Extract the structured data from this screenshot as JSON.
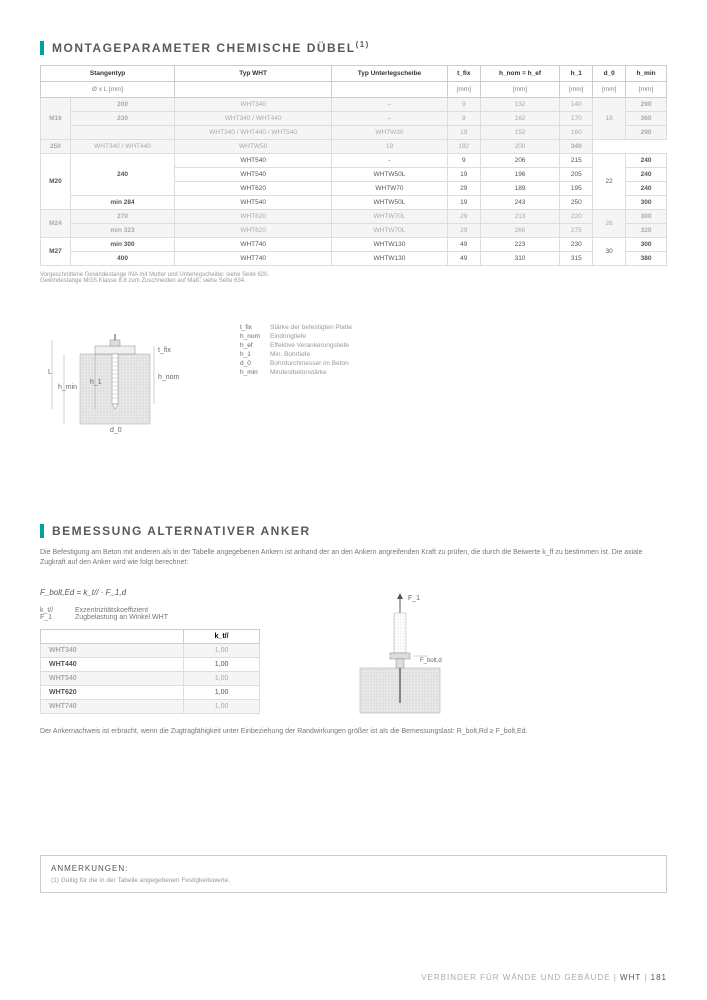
{
  "section1": {
    "title": "MONTAGEPARAMETER CHEMISCHE DÜBEL",
    "title_sup": "(1)",
    "headers_row1": [
      "Stangentyp",
      "",
      "Typ WHT",
      "Typ Unterlegscheibe",
      "t_fix",
      "h_nom = h_ef",
      "h_1",
      "d_0",
      "h_min"
    ],
    "headers_row2": [
      "Ø x L [mm]",
      "",
      "",
      "",
      "[mm]",
      "[mm]",
      "[mm]",
      "[mm]",
      "[mm]"
    ],
    "rows": [
      {
        "class": "dim",
        "rod": "M16",
        "rspan": 3,
        "len": "200",
        "typ": "WHT340",
        "washer": "–",
        "tfix": "9",
        "hnom": "132",
        "h1": "140",
        "d0": "18",
        "d0rspan": 3,
        "hmin": "290"
      },
      {
        "class": "dim",
        "len": "230",
        "typ": "WHT340 / WHT440",
        "washer": "–",
        "tfix": "9",
        "hnom": "162",
        "h1": "170",
        "hmin": "360"
      },
      {
        "class": "dim",
        "len": "",
        "typ": "WHT340 / WHT440 / WHT540",
        "washer": "WHTW30",
        "tfix": "19",
        "hnom": "152",
        "h1": "160",
        "hmin": "290"
      },
      {
        "class": "dim",
        "len": "250",
        "typ": "WHT340 / WHT440",
        "washer": "WHTW50",
        "tfix": "19",
        "hnom": "192",
        "h1": "200",
        "hmin": "340"
      },
      {
        "class": "highlight",
        "rod": "M20",
        "rspan": 4,
        "len": "240",
        "lenrspan": 3,
        "typ": "WHT540",
        "washer": "-",
        "tfix": "9",
        "hnom": "206",
        "h1": "215",
        "d0": "22",
        "d0rspan": 4,
        "hmin": "240"
      },
      {
        "class": "highlight",
        "typ": "WHT540",
        "washer": "WHTW50L",
        "tfix": "19",
        "hnom": "196",
        "h1": "205",
        "hmin": "240"
      },
      {
        "class": "highlight",
        "typ": "WHT620",
        "washer": "WHTW70",
        "tfix": "29",
        "hnom": "189",
        "h1": "195",
        "hmin": "240"
      },
      {
        "class": "highlight",
        "len": "min 284",
        "typ": "WHT540",
        "washer": "WHTW50L",
        "tfix": "19",
        "hnom": "243",
        "h1": "250",
        "hmin": "300"
      },
      {
        "class": "dim",
        "rod": "M24",
        "rspan": 2,
        "len": "270",
        "typ": "WHT620",
        "washer": "WHTW70L",
        "tfix": "29",
        "hnom": "213",
        "h1": "220",
        "d0": "26",
        "d0rspan": 2,
        "hmin": "300"
      },
      {
        "class": "dim",
        "len": "min 323",
        "typ": "WHT620",
        "washer": "WHTW70L",
        "tfix": "29",
        "hnom": "266",
        "h1": "275",
        "hmin": "320"
      },
      {
        "class": "highlight",
        "rod": "M27",
        "rspan": 2,
        "len": "min 300",
        "typ": "WHT740",
        "washer": "WHTW130",
        "tfix": "49",
        "hnom": "223",
        "h1": "230",
        "d0": "30",
        "d0rspan": 2,
        "hmin": "300"
      },
      {
        "class": "highlight",
        "len": "400",
        "typ": "WHT740",
        "washer": "WHTW130",
        "tfix": "49",
        "hnom": "310",
        "h1": "315",
        "hmin": "380"
      }
    ],
    "footnote1": "Vorgeschnittene Gewindestange INA mit Mutter und Unterlegscheibe: siehe Seite 620.",
    "footnote2": "Gewindestange MGS Klasse 8.8 zum Zuschneiden auf Maß: siehe Seite 634."
  },
  "legend": {
    "items": [
      {
        "sym": "t_fix",
        "txt": "Stärke der befestigten Platte"
      },
      {
        "sym": "h_nom",
        "txt": "Eindringtiefe"
      },
      {
        "sym": "h_ef",
        "txt": "Effektive Verankerungstiefe"
      },
      {
        "sym": "h_1",
        "txt": "Min. Bohrtiefe"
      },
      {
        "sym": "d_0",
        "txt": "Bohrdurchmesser im Beton"
      },
      {
        "sym": "h_min",
        "txt": "Mindestbetonstärke"
      }
    ],
    "diag_labels": {
      "L": "L",
      "hmin": "h_min",
      "h1": "h_1",
      "tfix": "t_fix",
      "hnom": "h_nom",
      "d0": "d_0"
    }
  },
  "section2": {
    "title": "BEMESSUNG ALTERNATIVER ANKER",
    "intro": "Die Befestigung am Beton mit anderen als in der Tabelle angegebenen Ankern ist anhand der an den Ankern angreifenden Kraft zu prüfen, die durch die Beiwerte k_ff zu bestimmen ist. Die axiale Zugkraft auf den Anker wird wie folgt berechnet:",
    "formula": "F_bolt,Ed = k_t// · F_1,d",
    "symdefs": [
      {
        "sym": "k_t//",
        "txt": "Exzentrizitätskoeffizient"
      },
      {
        "sym": "F_1",
        "txt": "Zugbelastung an Winkel WHT"
      }
    ],
    "table_header": "k_t//",
    "table_rows": [
      {
        "class": "dim",
        "name": "WHT340",
        "val": "1,00"
      },
      {
        "class": "highlight",
        "name": "WHT440",
        "val": "1,00"
      },
      {
        "class": "dim",
        "name": "WHT540",
        "val": "1,00"
      },
      {
        "class": "highlight",
        "name": "WHT620",
        "val": "1,00"
      },
      {
        "class": "dim",
        "name": "WHT740",
        "val": "1,00"
      }
    ],
    "diag2_labels": {
      "F1": "F_1",
      "Fbolt": "F_bolt,d"
    },
    "closing": "Der Ankernachweis ist erbracht, wenn die Zugtragfähigkeit unter Einbeziehung der Randwirkungen größer ist als die Bemessungslast: R_bolt,Rd ≥ F_bolt,Ed."
  },
  "anmerkungen": {
    "title": "ANMERKUNGEN:",
    "text": "(1) Gültig für die in der Tabelle angegebenen Festigkeitswerte."
  },
  "footer": {
    "cat": "VERBINDER FÜR WÄNDE UND GEBÄUDE",
    "prod": "WHT",
    "page": "181"
  }
}
